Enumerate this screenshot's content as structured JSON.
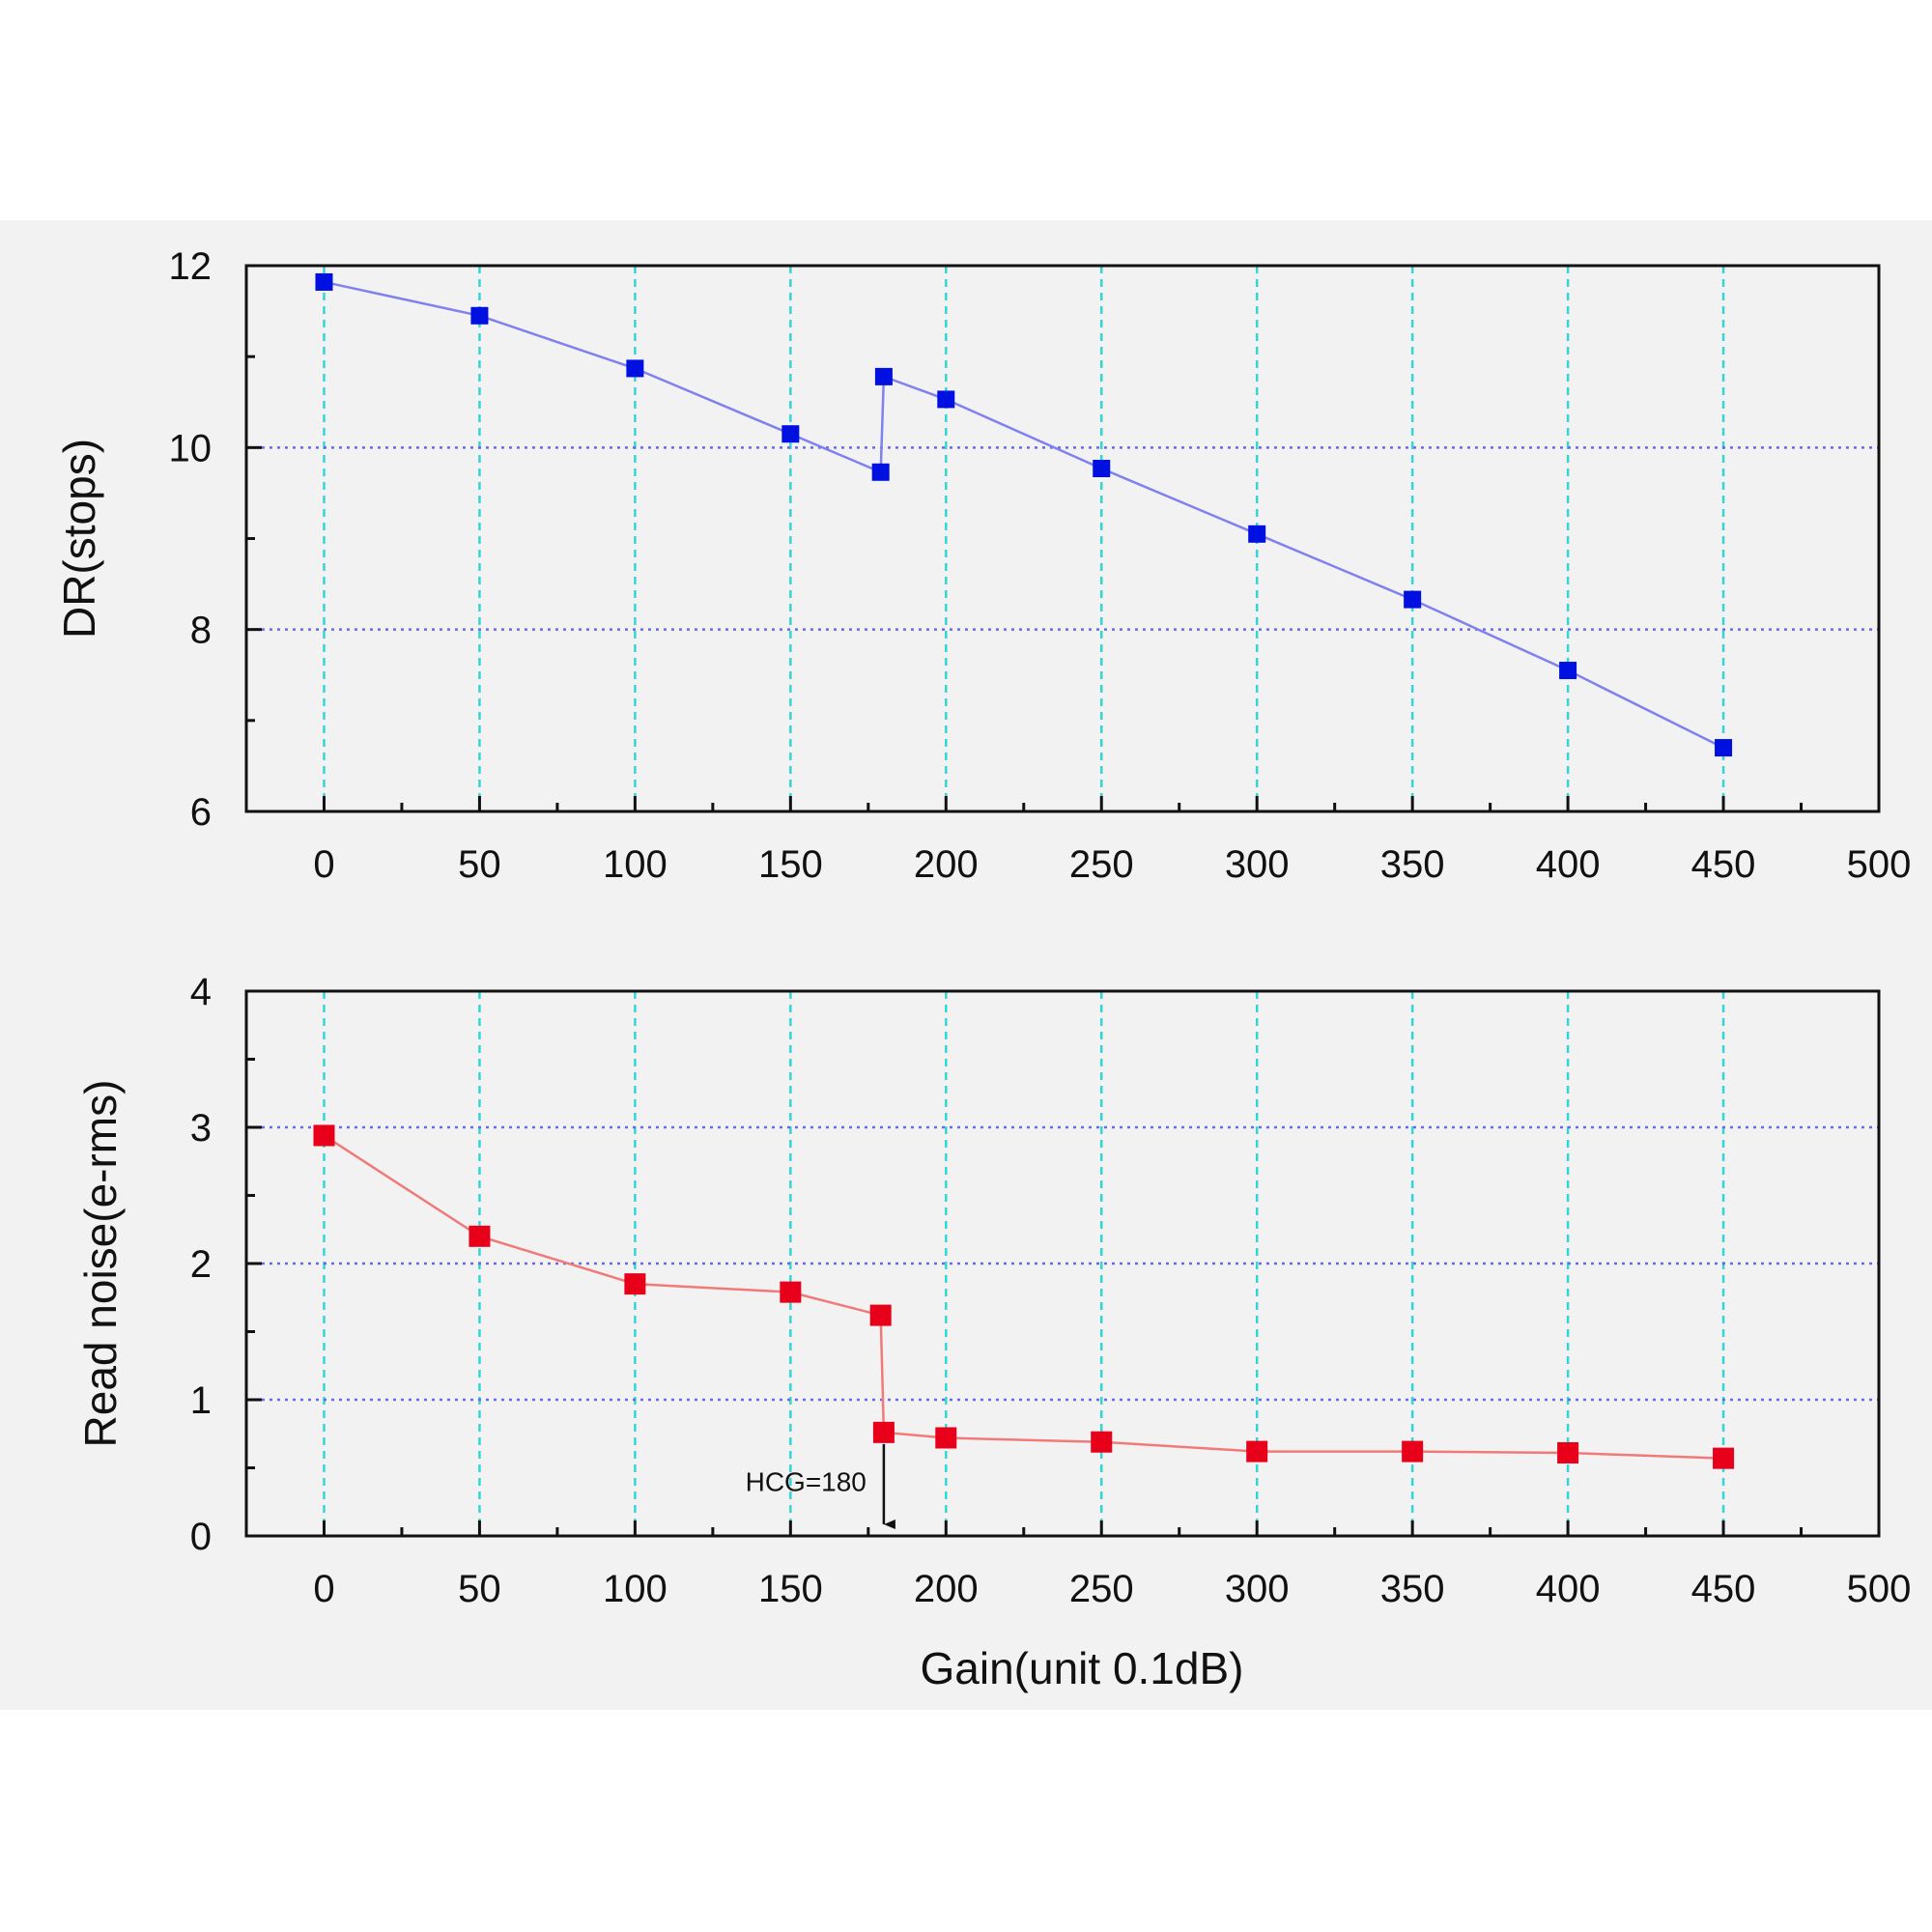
{
  "colors": {
    "background": "#ffffff",
    "panel": "#f2f2f2",
    "axis": "#111111",
    "vgrid": "#33d6d6",
    "hgrid": "#6a6ae8",
    "dr_marker": "#0010e0",
    "dr_line": "#8080ee",
    "rn_marker": "#e8001a",
    "rn_line": "#f07a7a"
  },
  "chart_data": [
    {
      "type": "line",
      "ylabel": "DR(stops)",
      "xlabel": "",
      "xlim": [
        -25,
        500
      ],
      "ylim": [
        6,
        12
      ],
      "xticks": [
        0,
        50,
        100,
        150,
        200,
        250,
        300,
        350,
        400,
        450,
        500
      ],
      "yticks": [
        6,
        8,
        10,
        12
      ],
      "grid": true,
      "series": [
        {
          "name": "DR",
          "marker": "square",
          "x": [
            0,
            50,
            100,
            150,
            179,
            180,
            200,
            250,
            300,
            350,
            400,
            450
          ],
          "y": [
            11.82,
            11.45,
            10.87,
            10.15,
            9.73,
            10.78,
            10.53,
            9.77,
            9.05,
            8.33,
            7.55,
            6.7
          ]
        }
      ]
    },
    {
      "type": "line",
      "ylabel": "Read noise(e-rms)",
      "xlabel": "Gain(unit 0.1dB)",
      "xlim": [
        -25,
        500
      ],
      "ylim": [
        0,
        4
      ],
      "xticks": [
        0,
        50,
        100,
        150,
        200,
        250,
        300,
        350,
        400,
        450,
        500
      ],
      "yticks": [
        0,
        1,
        2,
        3,
        4
      ],
      "grid": true,
      "series": [
        {
          "name": "Read noise",
          "marker": "square",
          "x": [
            0,
            50,
            100,
            150,
            179,
            180,
            200,
            250,
            300,
            350,
            400,
            450
          ],
          "y": [
            2.94,
            2.2,
            1.85,
            1.79,
            1.62,
            0.76,
            0.72,
            0.69,
            0.62,
            0.62,
            0.61,
            0.57
          ]
        }
      ],
      "annotations": [
        {
          "text": "HCG=180",
          "x": 180,
          "y_from": 0.76,
          "y_to": 0
        }
      ]
    }
  ]
}
